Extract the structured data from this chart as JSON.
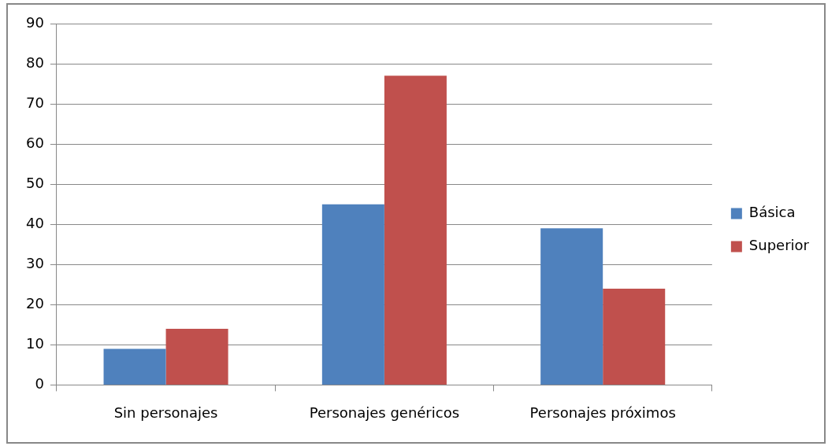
{
  "chart_data": {
    "type": "bar",
    "categories": [
      "Sin personajes",
      "Personajes genéricos",
      "Personajes próximos"
    ],
    "series": [
      {
        "name": "Básica",
        "color": "#4f81bd",
        "values": [
          9,
          45,
          39
        ]
      },
      {
        "name": "Superior",
        "color": "#c0504d",
        "values": [
          14,
          77,
          24
        ]
      }
    ],
    "ylim": [
      0,
      90
    ],
    "yticks": [
      0,
      10,
      20,
      30,
      40,
      50,
      60,
      70,
      80,
      90
    ],
    "grid": "y",
    "legend": "right"
  }
}
